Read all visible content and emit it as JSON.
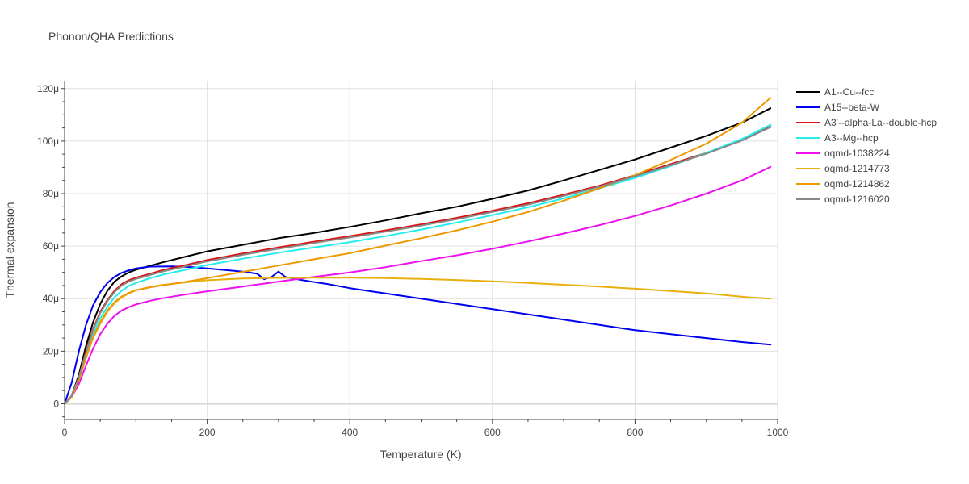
{
  "chart_data": {
    "type": "line",
    "title": "Phonon/QHA Predictions",
    "xlabel": "Temperature (K)",
    "ylabel": "Thermal expansion",
    "xlim": [
      0,
      1000
    ],
    "ylim": [
      -6,
      123
    ],
    "x_ticks": [
      0,
      200,
      400,
      600,
      800,
      1000
    ],
    "x_tick_labels": [
      "0",
      "200",
      "400",
      "600",
      "800",
      "1000"
    ],
    "y_ticks": [
      0,
      20,
      40,
      60,
      80,
      100,
      120
    ],
    "y_tick_labels": [
      "0",
      "20μ",
      "40μ",
      "60μ",
      "80μ",
      "100μ",
      "120μ"
    ],
    "grid": true,
    "legend_position": "right",
    "series": [
      {
        "name": "A1--Cu--fcc",
        "color": "#000000",
        "points": [
          [
            0,
            0
          ],
          [
            10,
            3
          ],
          [
            20,
            11
          ],
          [
            30,
            22
          ],
          [
            40,
            31
          ],
          [
            50,
            38
          ],
          [
            60,
            43
          ],
          [
            70,
            46.5
          ],
          [
            80,
            48.5
          ],
          [
            90,
            50
          ],
          [
            100,
            51
          ],
          [
            120,
            52.5
          ],
          [
            140,
            54
          ],
          [
            170,
            56
          ],
          [
            200,
            58
          ],
          [
            250,
            60.5
          ],
          [
            300,
            63
          ],
          [
            350,
            65
          ],
          [
            400,
            67.3
          ],
          [
            450,
            69.8
          ],
          [
            500,
            72.5
          ],
          [
            550,
            75
          ],
          [
            600,
            78
          ],
          [
            650,
            81.2
          ],
          [
            700,
            85
          ],
          [
            750,
            89
          ],
          [
            800,
            93
          ],
          [
            850,
            97.5
          ],
          [
            900,
            102
          ],
          [
            950,
            107
          ],
          [
            990,
            112.5
          ]
        ]
      },
      {
        "name": "A15--beta-W",
        "color": "#0000ee",
        "points": [
          [
            0,
            0
          ],
          [
            10,
            8
          ],
          [
            20,
            20
          ],
          [
            30,
            30
          ],
          [
            40,
            37.5
          ],
          [
            50,
            42.5
          ],
          [
            60,
            46
          ],
          [
            70,
            48.3
          ],
          [
            80,
            49.8
          ],
          [
            90,
            50.8
          ],
          [
            100,
            51.5
          ],
          [
            120,
            52.2
          ],
          [
            150,
            52.3
          ],
          [
            180,
            52
          ],
          [
            200,
            51.5
          ],
          [
            230,
            50.8
          ],
          [
            250,
            50.3
          ],
          [
            270,
            49.5
          ],
          [
            280,
            47.4
          ],
          [
            290,
            48.2
          ],
          [
            300,
            50.3
          ],
          [
            310,
            48.2
          ],
          [
            330,
            47.2
          ],
          [
            350,
            46.3
          ],
          [
            370,
            45.5
          ],
          [
            400,
            44
          ],
          [
            450,
            42
          ],
          [
            500,
            40
          ],
          [
            550,
            38
          ],
          [
            600,
            36
          ],
          [
            650,
            34
          ],
          [
            700,
            32
          ],
          [
            750,
            30
          ],
          [
            800,
            28
          ],
          [
            850,
            26.5
          ],
          [
            900,
            25
          ],
          [
            950,
            23.5
          ],
          [
            990,
            22.5
          ]
        ]
      },
      {
        "name": "A3'--alpha-La--double-hcp",
        "color": "#dd1111",
        "points": [
          [
            0,
            0
          ],
          [
            10,
            3
          ],
          [
            20,
            10
          ],
          [
            30,
            20
          ],
          [
            40,
            28.5
          ],
          [
            50,
            35
          ],
          [
            60,
            39.5
          ],
          [
            70,
            43
          ],
          [
            80,
            45.5
          ],
          [
            90,
            47
          ],
          [
            100,
            48
          ],
          [
            120,
            49.5
          ],
          [
            140,
            51
          ],
          [
            170,
            52.8
          ],
          [
            200,
            54.7
          ],
          [
            250,
            57.2
          ],
          [
            300,
            59.5
          ],
          [
            350,
            61.7
          ],
          [
            400,
            63.8
          ],
          [
            450,
            66
          ],
          [
            500,
            68.3
          ],
          [
            550,
            70.8
          ],
          [
            600,
            73.5
          ],
          [
            650,
            76.3
          ],
          [
            700,
            79.6
          ],
          [
            750,
            83
          ],
          [
            800,
            87
          ],
          [
            850,
            91.2
          ],
          [
            900,
            95.5
          ],
          [
            950,
            100.5
          ],
          [
            990,
            105.5
          ]
        ]
      },
      {
        "name": "A3--Mg--hcp",
        "color": "#22eeee",
        "points": [
          [
            0,
            0
          ],
          [
            10,
            3
          ],
          [
            20,
            9.5
          ],
          [
            30,
            18.5
          ],
          [
            40,
            26.5
          ],
          [
            50,
            32.5
          ],
          [
            60,
            37
          ],
          [
            70,
            40.5
          ],
          [
            80,
            43
          ],
          [
            90,
            44.8
          ],
          [
            100,
            46
          ],
          [
            120,
            47.8
          ],
          [
            140,
            49.3
          ],
          [
            170,
            51
          ],
          [
            200,
            52.8
          ],
          [
            250,
            55.2
          ],
          [
            300,
            57.5
          ],
          [
            350,
            59.5
          ],
          [
            400,
            61.5
          ],
          [
            450,
            63.8
          ],
          [
            500,
            66.3
          ],
          [
            550,
            69
          ],
          [
            600,
            71.8
          ],
          [
            650,
            74.8
          ],
          [
            700,
            78.2
          ],
          [
            750,
            82
          ],
          [
            800,
            86
          ],
          [
            850,
            90.5
          ],
          [
            900,
            95.5
          ],
          [
            950,
            100.8
          ],
          [
            990,
            106.2
          ]
        ]
      },
      {
        "name": "oqmd-1038224",
        "color": "#ee11ee",
        "points": [
          [
            0,
            0
          ],
          [
            10,
            2.5
          ],
          [
            20,
            7.5
          ],
          [
            30,
            14.5
          ],
          [
            40,
            21
          ],
          [
            50,
            26.5
          ],
          [
            60,
            30.5
          ],
          [
            70,
            33.5
          ],
          [
            80,
            35.5
          ],
          [
            90,
            36.8
          ],
          [
            100,
            37.8
          ],
          [
            120,
            39.2
          ],
          [
            140,
            40.3
          ],
          [
            170,
            41.6
          ],
          [
            200,
            42.8
          ],
          [
            250,
            44.6
          ],
          [
            300,
            46.5
          ],
          [
            350,
            48.3
          ],
          [
            400,
            50
          ],
          [
            450,
            52
          ],
          [
            500,
            54.3
          ],
          [
            550,
            56.5
          ],
          [
            600,
            59
          ],
          [
            650,
            61.8
          ],
          [
            700,
            64.8
          ],
          [
            750,
            68
          ],
          [
            800,
            71.5
          ],
          [
            850,
            75.5
          ],
          [
            900,
            80
          ],
          [
            950,
            85
          ],
          [
            990,
            90.2
          ]
        ]
      },
      {
        "name": "oqmd-1214773",
        "color": "#e8b00e",
        "points": [
          [
            0,
            0
          ],
          [
            10,
            2.5
          ],
          [
            20,
            9
          ],
          [
            30,
            17.5
          ],
          [
            40,
            25
          ],
          [
            50,
            30.5
          ],
          [
            60,
            35
          ],
          [
            70,
            38.3
          ],
          [
            80,
            40.5
          ],
          [
            90,
            42
          ],
          [
            100,
            43.2
          ],
          [
            120,
            44.5
          ],
          [
            140,
            45.3
          ],
          [
            170,
            46.2
          ],
          [
            200,
            47
          ],
          [
            250,
            47.7
          ],
          [
            300,
            47.9
          ],
          [
            350,
            48
          ],
          [
            400,
            48
          ],
          [
            450,
            47.8
          ],
          [
            500,
            47.5
          ],
          [
            550,
            47.1
          ],
          [
            600,
            46.6
          ],
          [
            650,
            46
          ],
          [
            700,
            45.3
          ],
          [
            750,
            44.6
          ],
          [
            800,
            43.8
          ],
          [
            850,
            42.9
          ],
          [
            900,
            42
          ],
          [
            960,
            40.5
          ],
          [
            990,
            40
          ]
        ]
      },
      {
        "name": "oqmd-1214862",
        "color": "#ee9900",
        "points": [
          [
            0,
            0
          ],
          [
            10,
            2.5
          ],
          [
            20,
            9
          ],
          [
            30,
            17.5
          ],
          [
            40,
            25.5
          ],
          [
            50,
            31
          ],
          [
            60,
            35.5
          ],
          [
            70,
            38.7
          ],
          [
            80,
            40.8
          ],
          [
            90,
            42.2
          ],
          [
            100,
            43.2
          ],
          [
            120,
            44.3
          ],
          [
            140,
            45.2
          ],
          [
            170,
            46.4
          ],
          [
            200,
            47.8
          ],
          [
            250,
            50.2
          ],
          [
            300,
            52.6
          ],
          [
            350,
            55
          ],
          [
            400,
            57.3
          ],
          [
            450,
            60.2
          ],
          [
            500,
            63
          ],
          [
            550,
            66
          ],
          [
            600,
            69.3
          ],
          [
            650,
            73
          ],
          [
            700,
            77.3
          ],
          [
            750,
            82
          ],
          [
            800,
            87
          ],
          [
            850,
            92.8
          ],
          [
            900,
            99
          ],
          [
            950,
            107
          ],
          [
            990,
            116.5
          ]
        ]
      },
      {
        "name": "oqmd-1216020",
        "color": "#888888",
        "points": [
          [
            0,
            0
          ],
          [
            10,
            3
          ],
          [
            20,
            10
          ],
          [
            30,
            19.5
          ],
          [
            40,
            28
          ],
          [
            50,
            34.5
          ],
          [
            60,
            39
          ],
          [
            70,
            42.5
          ],
          [
            80,
            45
          ],
          [
            90,
            46.5
          ],
          [
            100,
            47.5
          ],
          [
            120,
            49
          ],
          [
            140,
            50.5
          ],
          [
            170,
            52.3
          ],
          [
            200,
            54.2
          ],
          [
            250,
            56.7
          ],
          [
            300,
            59
          ],
          [
            350,
            61.2
          ],
          [
            400,
            63.3
          ],
          [
            450,
            65.5
          ],
          [
            500,
            67.8
          ],
          [
            550,
            70.3
          ],
          [
            600,
            73
          ],
          [
            650,
            75.8
          ],
          [
            700,
            79.1
          ],
          [
            750,
            82.6
          ],
          [
            800,
            86.6
          ],
          [
            850,
            90.8
          ],
          [
            900,
            95.2
          ],
          [
            950,
            100.2
          ],
          [
            990,
            105.3
          ]
        ]
      }
    ]
  }
}
